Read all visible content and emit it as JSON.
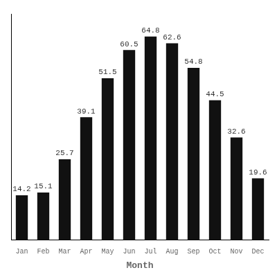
{
  "chart_data": {
    "type": "bar",
    "categories": [
      "Jan",
      "Feb",
      "Mar",
      "Apr",
      "May",
      "Jun",
      "Jul",
      "Aug",
      "Sep",
      "Oct",
      "Nov",
      "Dec"
    ],
    "values": [
      14.2,
      15.1,
      25.7,
      39.1,
      51.5,
      60.5,
      64.8,
      62.6,
      54.8,
      44.5,
      32.6,
      19.6
    ],
    "color": "#111111",
    "xlabel": "Month",
    "ylim": [
      0,
      72
    ],
    "grid": false,
    "data_labels": true,
    "tick_labels": "x"
  }
}
